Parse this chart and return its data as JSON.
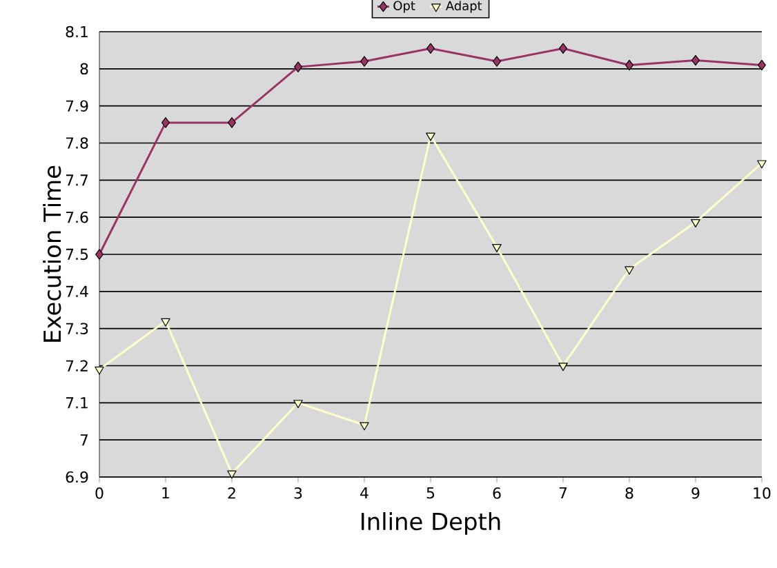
{
  "chart_data": {
    "type": "line",
    "xlabel": "Inline Depth",
    "ylabel": "Execution Time",
    "x": [
      0,
      1,
      2,
      3,
      4,
      5,
      6,
      7,
      8,
      9,
      10
    ],
    "series": [
      {
        "name": "Opt",
        "color": "#993366",
        "marker": "diamond",
        "values": [
          7.5,
          7.855,
          7.855,
          8.005,
          8.02,
          8.055,
          8.02,
          8.055,
          8.01,
          8.023,
          8.01
        ]
      },
      {
        "name": "Adapt",
        "color": "#ffffcc",
        "marker": "triangle",
        "values": [
          7.19,
          7.32,
          6.91,
          7.1,
          7.04,
          7.82,
          7.52,
          7.2,
          7.46,
          7.587,
          7.746
        ]
      }
    ],
    "xlim": [
      0,
      10
    ],
    "xticks": [
      0,
      1,
      2,
      3,
      4,
      5,
      6,
      7,
      8,
      9,
      10
    ],
    "ylim": [
      6.9,
      8.1
    ],
    "yticks": [
      6.9,
      7,
      7.1,
      7.2,
      7.3,
      7.4,
      7.5,
      7.6,
      7.7,
      7.8,
      7.9,
      8,
      8.1
    ],
    "grid": "y",
    "legend": "top",
    "line_style": "solid"
  }
}
